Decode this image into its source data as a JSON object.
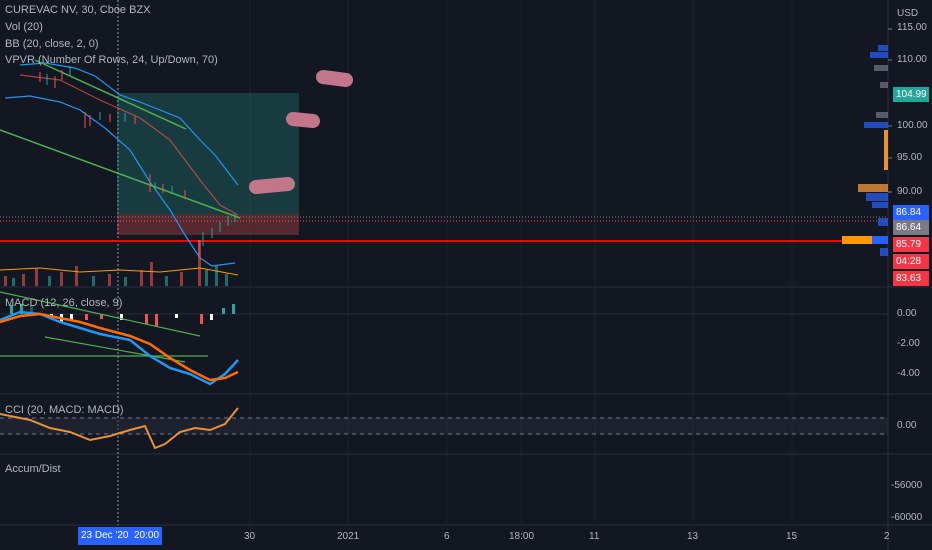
{
  "legend": {
    "symbol": "CUREVAC NV, 30, Cboe BZX",
    "vol": "Vol (20)",
    "bb": "BB (20, close, 2, 0)",
    "vpvr": "VPVR (Number Of Rows, 24, Up/Down, 70)",
    "macd": "MACD (12, 26, close, 9)",
    "cci": "CCI (20, MACD: MACD)",
    "accum": "Accum/Dist"
  },
  "price_axis": {
    "currency": "USD",
    "ticks": [
      "115.00",
      "110.00",
      "100.00",
      "95.00",
      "90.00"
    ],
    "partial_tick": "105.00"
  },
  "badges": {
    "b1": {
      "label": "104.99",
      "color": "#26a69a"
    },
    "b2": {
      "label": "86.84",
      "color": "#2962ff"
    },
    "b3": {
      "label": "86.64",
      "color": "#787b86"
    },
    "b4": {
      "label": "85.79",
      "color": "#f23645"
    },
    "b5": {
      "label": "04:28",
      "color": "#f23645"
    },
    "b6": {
      "label": "83.63",
      "color": "#f23645"
    }
  },
  "macd_axis": {
    "ticks": [
      "0.00",
      "-2.00",
      "-4.00"
    ]
  },
  "cci_axis": {
    "ticks": [
      "0.00"
    ]
  },
  "accum_axis": {
    "ticks": [
      "-56000",
      "-60000"
    ]
  },
  "time_axis": {
    "ticks": [
      "30",
      "2021",
      "6",
      "18:00",
      "11",
      "13",
      "15",
      "2"
    ],
    "cursor_date": "23 Dec '20",
    "cursor_time": "20:00"
  },
  "colors": {
    "background": "#131722",
    "up": "#26a69a",
    "down": "#ef5350",
    "bollinger": "#2196f3",
    "macd_line": "#2196f3",
    "signal_line": "#ff6d00",
    "cci_line": "#e8923a",
    "support_line": "#ff0000",
    "trendline": "#4caf50",
    "drawing_highlight": "#c2768a"
  }
}
